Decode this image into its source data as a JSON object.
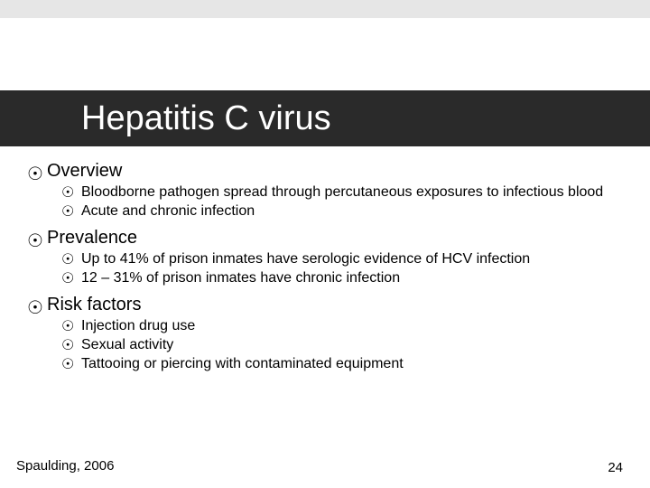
{
  "colors": {
    "top_bar": "#e6e6e6",
    "title_bar_bg": "#2a2a2a",
    "title_text": "#ffffff",
    "body_text": "#000000",
    "background": "#ffffff"
  },
  "title": "Hepatitis C virus",
  "bullet_glyph": "☉",
  "sections": [
    {
      "heading": "Overview",
      "items": [
        "Bloodborne pathogen spread through percutaneous exposures to infectious blood",
        "Acute and chronic infection"
      ]
    },
    {
      "heading": "Prevalence",
      "items": [
        "Up to 41% of prison inmates have serologic evidence of HCV infection",
        "12 – 31% of prison inmates have chronic infection"
      ]
    },
    {
      "heading": "Risk factors",
      "items": [
        "Injection drug use",
        "Sexual activity",
        "Tattooing or piercing with contaminated equipment"
      ]
    }
  ],
  "citation": "Spaulding, 2006",
  "page_number": "24"
}
